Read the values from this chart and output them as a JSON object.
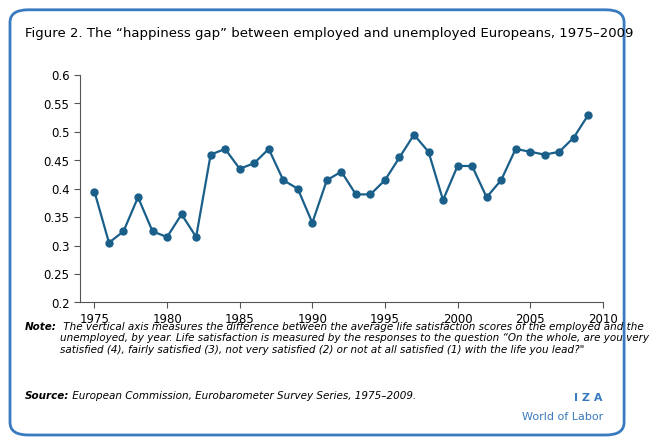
{
  "title": "Figure 2. The “happiness gap” between employed and unemployed Europeans, 1975–2009",
  "years": [
    1975,
    1976,
    1977,
    1978,
    1979,
    1980,
    1981,
    1982,
    1983,
    1984,
    1985,
    1986,
    1987,
    1988,
    1989,
    1990,
    1991,
    1992,
    1993,
    1994,
    1995,
    1996,
    1997,
    1998,
    1999,
    2000,
    2001,
    2002,
    2003,
    2004,
    2005,
    2006,
    2007,
    2008,
    2009
  ],
  "values": [
    0.395,
    0.305,
    0.325,
    0.385,
    0.325,
    0.315,
    0.355,
    0.315,
    0.46,
    0.47,
    0.435,
    0.445,
    0.47,
    0.415,
    0.4,
    0.34,
    0.415,
    0.43,
    0.39,
    0.39,
    0.415,
    0.455,
    0.495,
    0.465,
    0.38,
    0.44,
    0.44,
    0.385,
    0.415,
    0.47,
    0.465,
    0.46,
    0.465,
    0.49,
    0.53
  ],
  "line_color": "#1a5f8a",
  "marker_color": "#1a5f8a",
  "xlim": [
    1974,
    2010
  ],
  "ylim": [
    0.2,
    0.6
  ],
  "xticks": [
    1975,
    1980,
    1985,
    1990,
    1995,
    2000,
    2005,
    2010
  ],
  "yticks": [
    0.2,
    0.25,
    0.3,
    0.35,
    0.4,
    0.45,
    0.5,
    0.55,
    0.6
  ],
  "note_label": "Note:",
  "note_body": " The vertical axis measures the difference between the average life satisfaction scores of the employed and the\nunemployed, by year. Life satisfaction is measured by the responses to the question “On the whole, are you very\nsatisfied (4), fairly satisfied (3), not very satisfied (2) or not at all satisfied (1) with the life you lead?\"",
  "source_label": "Source:",
  "source_body": " European Commission, Eurobarometer Survey Series, 1975–2009.",
  "iza_text": "I Z A",
  "wol_text": "World of Labor",
  "outer_bg": "#ffffff",
  "plot_bg_color": "#ffffff",
  "border_color": "#3a7abf",
  "tick_label_size": 8.5,
  "note_fontsize": 7.5,
  "source_fontsize": 7.5,
  "title_fontsize": 9.5
}
